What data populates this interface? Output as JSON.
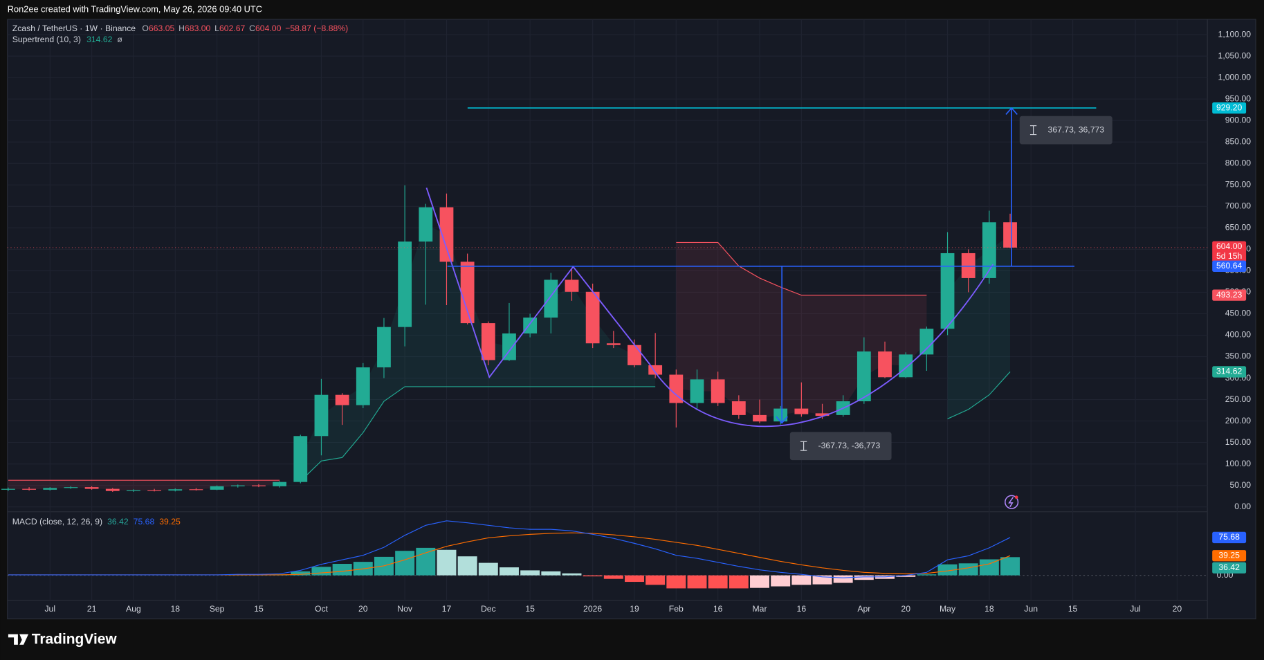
{
  "header": {
    "credit": "Ron2ee created with TradingView.com, May 26, 2026 09:40 UTC"
  },
  "legend": {
    "symbol": "Zcash / TetherUS · 1W · Binance",
    "ohlc": [
      {
        "key": "O",
        "value": "663.05"
      },
      {
        "key": "H",
        "value": "683.00"
      },
      {
        "key": "L",
        "value": "602.67"
      },
      {
        "key": "C",
        "value": "604.00"
      }
    ],
    "change": "−58.87 (−8.88%)",
    "supertrend": "Supertrend (10, 3)",
    "supertrend_extra": "ø",
    "macd": "MACD (close, 12, 26, 9)"
  },
  "chart_data": [
    {
      "type": "candlestick",
      "categories": [
        null,
        null,
        "Jul",
        null,
        "21",
        null,
        "Aug",
        null,
        "18",
        null,
        "Sep",
        null,
        "15",
        null,
        null,
        "Oct",
        null,
        "20",
        null,
        "Nov",
        null,
        "17",
        null,
        "Dec",
        null,
        "15",
        null,
        null,
        "2026",
        null,
        "19",
        null,
        "Feb",
        null,
        "16",
        null,
        "Mar",
        null,
        "16",
        null,
        null,
        "Apr",
        null,
        "20",
        null,
        "May",
        null,
        "18",
        null,
        "Jun",
        null,
        "15",
        null,
        null,
        "Jul",
        null,
        "20",
        null
      ],
      "open": [
        40,
        42,
        40,
        44,
        46,
        42,
        37,
        39,
        38,
        41,
        40,
        48,
        50,
        48,
        58,
        165,
        261,
        237,
        325,
        419,
        618,
        698,
        571,
        428,
        342,
        404,
        441,
        529,
        501,
        381,
        377,
        330,
        308,
        242,
        297,
        246,
        214,
        199,
        229,
        218,
        214,
        246,
        362,
        302,
        355,
        415,
        591,
        533,
        663.05,
        null,
        null,
        null,
        null,
        null,
        null,
        null,
        null,
        null
      ],
      "high": [
        45,
        46,
        46,
        48,
        48,
        44,
        41,
        42,
        43,
        44,
        50,
        52,
        53,
        60,
        168,
        298,
        265,
        335,
        440,
        749,
        706,
        730,
        590,
        432,
        475,
        450,
        545,
        555,
        520,
        410,
        390,
        405,
        320,
        320,
        315,
        260,
        250,
        235,
        290,
        240,
        260,
        395,
        385,
        360,
        420,
        640,
        600,
        690,
        683,
        null,
        null,
        null,
        null,
        null,
        null,
        null,
        null,
        null
      ],
      "low": [
        37,
        38,
        38,
        42,
        40,
        35,
        35,
        36,
        36,
        38,
        39,
        45,
        46,
        45,
        55,
        120,
        191,
        230,
        300,
        374,
        471,
        470,
        425,
        330,
        340,
        395,
        404,
        480,
        370,
        370,
        325,
        300,
        185,
        225,
        235,
        205,
        195,
        192,
        210,
        205,
        210,
        240,
        300,
        300,
        317,
        400,
        500,
        520,
        602.67,
        null,
        null,
        null,
        null,
        null,
        null,
        null,
        null,
        null
      ],
      "close": [
        42,
        40,
        44,
        46,
        42,
        37,
        39,
        38,
        41,
        40,
        48,
        50,
        48,
        58,
        165,
        261,
        237,
        325,
        419,
        618,
        698,
        571,
        428,
        342,
        404,
        441,
        529,
        501,
        381,
        377,
        330,
        308,
        242,
        297,
        242,
        214,
        199,
        229,
        216,
        212,
        246,
        362,
        302,
        355,
        415,
        591,
        533,
        663,
        604,
        null,
        null,
        null,
        null,
        null,
        null,
        null,
        null,
        null
      ],
      "up_color": "#22ab94",
      "down_color": "#f7525f",
      "supertrend": {
        "up": {
          "color": "#22ab94",
          "values": [
            null,
            null,
            null,
            null,
            null,
            null,
            null,
            null,
            null,
            null,
            null,
            null,
            null,
            null,
            60,
            107,
            115,
            173,
            246,
            280,
            280,
            280,
            280,
            280,
            280,
            280,
            280,
            280,
            280,
            280,
            280,
            280,
            null,
            null,
            null,
            null,
            null,
            null,
            null,
            null,
            null,
            null,
            null,
            null,
            null,
            205,
            227,
            261,
            314.62,
            null,
            null,
            null,
            null,
            null,
            null,
            null,
            null,
            null
          ]
        },
        "down": {
          "color": "#f7525f",
          "values": [
            62,
            62,
            62,
            62,
            62,
            62,
            62,
            62,
            62,
            62,
            62,
            62,
            62,
            62,
            null,
            null,
            null,
            null,
            null,
            null,
            null,
            null,
            null,
            null,
            null,
            null,
            null,
            null,
            null,
            null,
            null,
            null,
            616,
            616,
            616,
            561,
            533,
            512,
            493.23,
            493.23,
            493.23,
            493.23,
            493.23,
            493.23,
            493.23,
            null,
            null,
            null,
            null,
            null,
            null,
            null,
            null,
            null,
            null,
            null,
            null,
            null
          ]
        }
      },
      "ylim": [
        -9.4,
        1135.7
      ],
      "yticks": [
        {
          "value": 0,
          "label": "0.00"
        },
        {
          "value": 50,
          "label": "50.00"
        },
        {
          "value": 100,
          "label": "100.00"
        },
        {
          "value": 150,
          "label": "150.00"
        },
        {
          "value": 200,
          "label": "200.00"
        },
        {
          "value": 250,
          "label": "250.00"
        },
        {
          "value": 300,
          "label": "300.00"
        },
        {
          "value": 350,
          "label": "350.00"
        },
        {
          "value": 400,
          "label": "400.00"
        },
        {
          "value": 450,
          "label": "450.00"
        },
        {
          "value": 500,
          "label": "500.00"
        },
        {
          "value": 550,
          "label": "550.00"
        },
        {
          "value": 600,
          "label": "600.00"
        },
        {
          "value": 650,
          "label": "650.00"
        },
        {
          "value": 700,
          "label": "700.00"
        },
        {
          "value": 750,
          "label": "750.00"
        },
        {
          "value": 800,
          "label": "800.00"
        },
        {
          "value": 850,
          "label": "850.00"
        },
        {
          "value": 900,
          "label": "900.00"
        },
        {
          "value": 950,
          "label": "950.00"
        },
        {
          "value": 1000,
          "label": "1,000.00"
        },
        {
          "value": 1050,
          "label": "1,050.00"
        },
        {
          "value": 1100,
          "label": "1,100.00"
        }
      ],
      "grid": true,
      "levels": [
        {
          "value": 929.2,
          "label": "929.20",
          "color": "#00bcd4"
        },
        {
          "value": 560.64,
          "label": "560.64",
          "color": "#2962ff"
        }
      ],
      "price_labels": [
        {
          "value": 604,
          "label": "604.00",
          "sublabel": "5d 15h",
          "color": "#f23645"
        }
      ],
      "measures": [
        {
          "label": "367.73, 36,773"
        },
        {
          "label": "-367.73, -36,773"
        }
      ]
    },
    {
      "type": "macd",
      "series": [
        {
          "color": "#2962ff",
          "values": [
            1,
            1,
            1,
            1,
            1,
            1,
            1,
            1,
            1,
            1,
            1,
            2,
            2,
            3,
            10,
            22,
            31,
            40,
            56,
            80,
            100,
            109,
            105,
            100,
            95,
            92,
            92,
            89,
            82,
            74,
            64,
            53,
            40,
            34,
            26,
            18,
            11,
            6,
            2,
            -3,
            -5,
            -3,
            -3,
            0,
            6,
            31,
            39,
            55,
            75.68,
            null,
            null,
            null,
            null,
            null,
            null,
            null,
            null,
            null
          ]
        },
        {
          "color": "#ff6d00",
          "values": [
            1,
            1,
            1,
            1,
            1,
            1,
            1,
            1,
            1,
            1,
            1,
            1,
            1,
            1,
            2,
            5,
            8,
            13,
            19,
            31,
            45,
            58,
            67,
            75,
            79,
            82,
            84,
            85,
            84,
            81,
            77,
            72,
            66,
            60,
            52,
            44,
            36,
            28,
            21,
            15,
            10,
            6,
            4,
            3,
            4,
            9,
            15,
            23,
            39.25,
            null,
            null,
            null,
            null,
            null,
            null,
            null,
            null,
            null
          ]
        }
      ],
      "histogram": {
        "values": [
          0,
          0,
          0,
          0,
          0,
          0,
          0,
          0,
          0,
          0,
          0,
          1,
          1,
          2,
          8,
          17,
          23,
          27,
          37,
          49,
          55,
          51,
          38,
          25,
          16,
          10,
          8,
          4,
          -2,
          -7,
          -13,
          -19,
          -26,
          -26,
          -26,
          -26,
          -25,
          -22,
          -19,
          -18,
          -15,
          -9,
          -7,
          -3,
          2,
          22,
          24,
          32,
          36.42,
          null,
          null,
          null,
          null,
          null,
          null,
          null,
          null,
          null
        ],
        "colors": {
          "rising_positive": "#26a69a",
          "falling_positive": "#b2dfdb",
          "falling_negative": "#ff5252",
          "rising_negative": "#ffcdd2"
        }
      },
      "ylim": [
        -50,
        125.6
      ],
      "yticks": [
        {
          "value": 0,
          "label": "0.00"
        }
      ],
      "grid": true
    }
  ],
  "footer": {
    "brand": "TradingView"
  }
}
